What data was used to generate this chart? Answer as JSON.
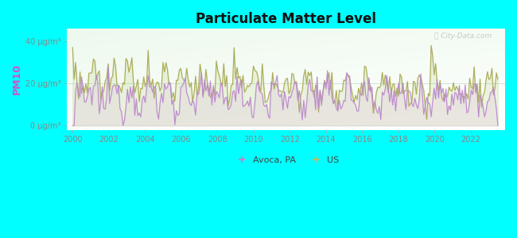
{
  "title": "Particulate Matter Level",
  "ylabel": "PM10",
  "ytick_labels": [
    "0 μg/m³",
    "20 μg/m³",
    "40 μg/m³"
  ],
  "ytick_values": [
    0,
    20,
    40
  ],
  "ylim": [
    -2,
    46
  ],
  "xlim": [
    1999.7,
    2023.9
  ],
  "bg_color": "#00FFFF",
  "plot_bg_top": "#f5fff5",
  "plot_bg_bottom": "#cceecc",
  "avoca_color": "#bb88cc",
  "us_color": "#aaaa55",
  "ylabel_color": "#cc55cc",
  "tick_color": "#888888",
  "legend_avoca": "Avoca, PA",
  "legend_us": "US",
  "watermark": "ⓘ City-Data.com",
  "xticks": [
    2000,
    2002,
    2004,
    2006,
    2008,
    2010,
    2012,
    2014,
    2016,
    2018,
    2020,
    2022
  ]
}
